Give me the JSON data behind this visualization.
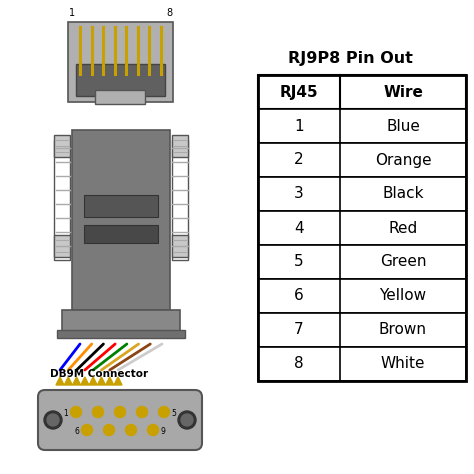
{
  "title": "RJ9P8 Pin Out",
  "table_headers": [
    "RJ45",
    "Wire"
  ],
  "table_rows": [
    [
      "1",
      "Blue"
    ],
    [
      "2",
      "Orange"
    ],
    [
      "3",
      "Black"
    ],
    [
      "4",
      "Red"
    ],
    [
      "5",
      "Green"
    ],
    [
      "6",
      "Yellow"
    ],
    [
      "7",
      "Brown"
    ],
    [
      "8",
      "White"
    ]
  ],
  "wire_colors": [
    "blue",
    "#FF8C00",
    "black",
    "red",
    "green",
    "#DAA520",
    "#8B4513",
    "#CCCCCC"
  ],
  "pin_label_1": "1",
  "pin_label_8": "8",
  "db9_label": "DB9M Connector",
  "background_color": "white",
  "connector_body_color": "#7A7A7A",
  "rj45_body_color": "#B0B0B0",
  "rj45_inner_color": "#606060",
  "rj45_pin_color": "#C8A000",
  "db9_body_color": "#A8A8A8",
  "db9_pin_color": "#C8A000",
  "screw_color": "#C8C8C8",
  "side_post_color": "#D0D0D0",
  "shell_bottom_color": "#888888",
  "dark_detail_color": "#555555",
  "darker_detail_color": "#484848"
}
